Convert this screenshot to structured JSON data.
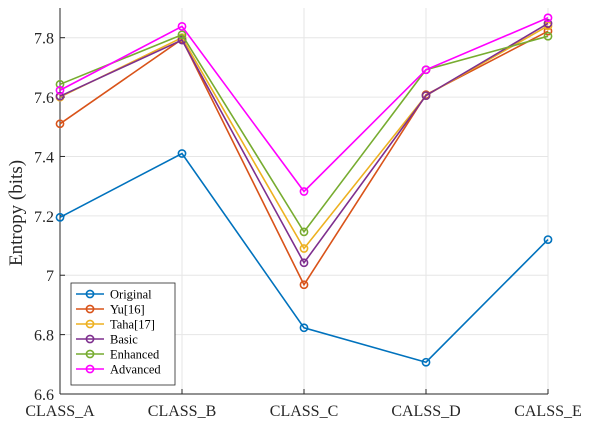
{
  "chart_data": {
    "type": "line",
    "title": "",
    "xlabel": "",
    "ylabel": "Entropy (bits)",
    "categories": [
      "CLASS_A",
      "CLASS_B",
      "CLASS_C",
      "CALSS_D",
      "CALSS_E"
    ],
    "ylim": [
      6.6,
      7.9
    ],
    "yticks": [
      6.6,
      6.8,
      7,
      7.2,
      7.4,
      7.6,
      7.8
    ],
    "ytick_labels": [
      "6.6",
      "6.8",
      "7",
      "7.2",
      "7.4",
      "7.6",
      "7.8"
    ],
    "grid": true,
    "legend_position": "bottom-left",
    "marker": "circle",
    "series": [
      {
        "name": "Original",
        "color": "#0072BD",
        "values": [
          7.195,
          7.41,
          6.823,
          6.707,
          7.12
        ]
      },
      {
        "name": "Yu[16]",
        "color": "#D95319",
        "values": [
          7.51,
          7.795,
          6.968,
          7.608,
          7.822
        ]
      },
      {
        "name": "Taha[17]",
        "color": "#EDB120",
        "values": [
          7.6,
          7.8,
          7.09,
          7.605,
          7.84
        ]
      },
      {
        "name": "Basic",
        "color": "#7E2F8E",
        "values": [
          7.603,
          7.792,
          7.042,
          7.605,
          7.848
        ]
      },
      {
        "name": "Enhanced",
        "color": "#77AC30",
        "values": [
          7.643,
          7.81,
          7.146,
          7.692,
          7.805
        ]
      },
      {
        "name": "Advanced",
        "color": "#FF00FF",
        "values": [
          7.623,
          7.838,
          7.282,
          7.692,
          7.867
        ]
      }
    ]
  }
}
